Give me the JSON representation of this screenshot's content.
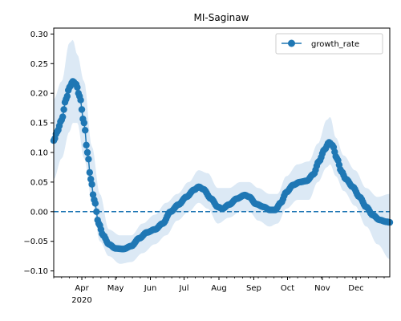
{
  "chart_data": {
    "type": "line",
    "title": "MI-Saginaw",
    "xlabel": "",
    "ylabel": "",
    "x_start": "2020-03-07",
    "x_end": "2020-12-31",
    "xlim": [
      "2020-03-07",
      "2020-12-31"
    ],
    "ylim": [
      -0.11,
      0.31
    ],
    "yticks": [
      -0.1,
      -0.05,
      0.0,
      0.05,
      0.1,
      0.15,
      0.2,
      0.25,
      0.3
    ],
    "ytick_labels": [
      "−0.10",
      "−0.05",
      "0.00",
      "0.05",
      "0.10",
      "0.15",
      "0.20",
      "0.25",
      "0.30"
    ],
    "xticks": [
      "2020-04-01",
      "2020-05-01",
      "2020-06-01",
      "2020-07-01",
      "2020-08-01",
      "2020-09-01",
      "2020-10-01",
      "2020-11-01",
      "2020-12-01"
    ],
    "xtick_labels": [
      "Apr",
      "May",
      "Jun",
      "Jul",
      "Aug",
      "Sep",
      "Oct",
      "Nov",
      "Dec"
    ],
    "xtick_sublabel": {
      "date": "2020-04-01",
      "text": "2020"
    },
    "minor_xticks": "weekly",
    "grid": false,
    "legend": {
      "position": "top-right",
      "entries": [
        "growth_rate"
      ]
    },
    "hline": {
      "y": 0.0,
      "style": "dashed"
    },
    "colors": {
      "series": "#1f77b4",
      "band": "#dce9f5",
      "axis": "#000000"
    },
    "series": [
      {
        "name": "growth_rate",
        "marker": "circle",
        "control_points": [
          [
            "2020-03-07",
            0.12
          ],
          [
            "2020-03-10",
            0.135
          ],
          [
            "2020-03-14",
            0.155
          ],
          [
            "2020-03-18",
            0.19
          ],
          [
            "2020-03-21",
            0.21
          ],
          [
            "2020-03-24",
            0.22
          ],
          [
            "2020-03-27",
            0.215
          ],
          [
            "2020-03-30",
            0.195
          ],
          [
            "2020-04-03",
            0.15
          ],
          [
            "2020-04-06",
            0.1
          ],
          [
            "2020-04-09",
            0.055
          ],
          [
            "2020-04-12",
            0.02
          ],
          [
            "2020-04-16",
            -0.02
          ],
          [
            "2020-04-20",
            -0.04
          ],
          [
            "2020-04-25",
            -0.055
          ],
          [
            "2020-05-01",
            -0.062
          ],
          [
            "2020-05-08",
            -0.063
          ],
          [
            "2020-05-15",
            -0.058
          ],
          [
            "2020-05-22",
            -0.045
          ],
          [
            "2020-05-29",
            -0.035
          ],
          [
            "2020-06-05",
            -0.03
          ],
          [
            "2020-06-12",
            -0.02
          ],
          [
            "2020-06-19",
            0.0
          ],
          [
            "2020-06-26",
            0.012
          ],
          [
            "2020-07-03",
            0.025
          ],
          [
            "2020-07-10",
            0.037
          ],
          [
            "2020-07-14",
            0.042
          ],
          [
            "2020-07-18",
            0.038
          ],
          [
            "2020-07-25",
            0.022
          ],
          [
            "2020-07-31",
            0.008
          ],
          [
            "2020-08-04",
            0.005
          ],
          [
            "2020-08-10",
            0.012
          ],
          [
            "2020-08-17",
            0.022
          ],
          [
            "2020-08-24",
            0.028
          ],
          [
            "2020-08-28",
            0.025
          ],
          [
            "2020-09-03",
            0.013
          ],
          [
            "2020-09-10",
            0.008
          ],
          [
            "2020-09-15",
            0.003
          ],
          [
            "2020-09-20",
            0.003
          ],
          [
            "2020-09-25",
            0.015
          ],
          [
            "2020-09-30",
            0.033
          ],
          [
            "2020-10-06",
            0.045
          ],
          [
            "2020-10-12",
            0.05
          ],
          [
            "2020-10-18",
            0.052
          ],
          [
            "2020-10-24",
            0.063
          ],
          [
            "2020-10-29",
            0.085
          ],
          [
            "2020-11-03",
            0.105
          ],
          [
            "2020-11-07",
            0.117
          ],
          [
            "2020-11-10",
            0.112
          ],
          [
            "2020-11-14",
            0.09
          ],
          [
            "2020-11-18",
            0.068
          ],
          [
            "2020-11-22",
            0.055
          ],
          [
            "2020-11-28",
            0.042
          ],
          [
            "2020-12-04",
            0.025
          ],
          [
            "2020-12-10",
            0.008
          ],
          [
            "2020-12-16",
            -0.006
          ],
          [
            "2020-12-22",
            -0.014
          ],
          [
            "2020-12-28",
            -0.017
          ],
          [
            "2020-12-31",
            -0.018
          ]
        ]
      }
    ],
    "band": {
      "name": "confidence_band",
      "upper": [
        [
          "2020-03-07",
          0.19
        ],
        [
          "2020-03-14",
          0.22
        ],
        [
          "2020-03-21",
          0.285
        ],
        [
          "2020-03-24",
          0.29
        ],
        [
          "2020-03-28",
          0.265
        ],
        [
          "2020-04-03",
          0.22
        ],
        [
          "2020-04-10",
          0.11
        ],
        [
          "2020-04-17",
          0.03
        ],
        [
          "2020-04-25",
          -0.03
        ],
        [
          "2020-05-05",
          -0.04
        ],
        [
          "2020-05-15",
          -0.04
        ],
        [
          "2020-05-25",
          -0.02
        ],
        [
          "2020-06-05",
          -0.005
        ],
        [
          "2020-06-15",
          0.015
        ],
        [
          "2020-06-25",
          0.03
        ],
        [
          "2020-07-05",
          0.05
        ],
        [
          "2020-07-14",
          0.07
        ],
        [
          "2020-07-22",
          0.065
        ],
        [
          "2020-07-31",
          0.04
        ],
        [
          "2020-08-10",
          0.04
        ],
        [
          "2020-08-20",
          0.05
        ],
        [
          "2020-08-28",
          0.05
        ],
        [
          "2020-09-05",
          0.04
        ],
        [
          "2020-09-15",
          0.03
        ],
        [
          "2020-09-22",
          0.03
        ],
        [
          "2020-09-30",
          0.06
        ],
        [
          "2020-10-10",
          0.08
        ],
        [
          "2020-10-20",
          0.085
        ],
        [
          "2020-10-28",
          0.115
        ],
        [
          "2020-11-05",
          0.155
        ],
        [
          "2020-11-08",
          0.16
        ],
        [
          "2020-11-13",
          0.125
        ],
        [
          "2020-11-20",
          0.095
        ],
        [
          "2020-11-30",
          0.07
        ],
        [
          "2020-12-10",
          0.04
        ],
        [
          "2020-12-20",
          0.025
        ],
        [
          "2020-12-31",
          0.03
        ]
      ],
      "lower": [
        [
          "2020-03-07",
          0.055
        ],
        [
          "2020-03-14",
          0.09
        ],
        [
          "2020-03-21",
          0.135
        ],
        [
          "2020-03-24",
          0.15
        ],
        [
          "2020-03-28",
          0.15
        ],
        [
          "2020-04-03",
          0.09
        ],
        [
          "2020-04-10",
          0.02
        ],
        [
          "2020-04-17",
          -0.05
        ],
        [
          "2020-04-25",
          -0.075
        ],
        [
          "2020-05-05",
          -0.088
        ],
        [
          "2020-05-15",
          -0.085
        ],
        [
          "2020-05-25",
          -0.07
        ],
        [
          "2020-06-05",
          -0.055
        ],
        [
          "2020-06-15",
          -0.04
        ],
        [
          "2020-06-25",
          -0.015
        ],
        [
          "2020-07-05",
          0.0
        ],
        [
          "2020-07-14",
          0.015
        ],
        [
          "2020-07-22",
          0.005
        ],
        [
          "2020-07-31",
          -0.02
        ],
        [
          "2020-08-10",
          -0.01
        ],
        [
          "2020-08-20",
          0.0
        ],
        [
          "2020-08-28",
          0.0
        ],
        [
          "2020-09-05",
          -0.015
        ],
        [
          "2020-09-15",
          -0.025
        ],
        [
          "2020-09-22",
          -0.02
        ],
        [
          "2020-09-30",
          0.005
        ],
        [
          "2020-10-10",
          0.02
        ],
        [
          "2020-10-20",
          0.02
        ],
        [
          "2020-10-28",
          0.05
        ],
        [
          "2020-11-05",
          0.075
        ],
        [
          "2020-11-08",
          0.08
        ],
        [
          "2020-11-13",
          0.06
        ],
        [
          "2020-11-20",
          0.035
        ],
        [
          "2020-11-30",
          0.01
        ],
        [
          "2020-12-10",
          -0.025
        ],
        [
          "2020-12-20",
          -0.055
        ],
        [
          "2020-12-31",
          -0.08
        ]
      ]
    }
  }
}
